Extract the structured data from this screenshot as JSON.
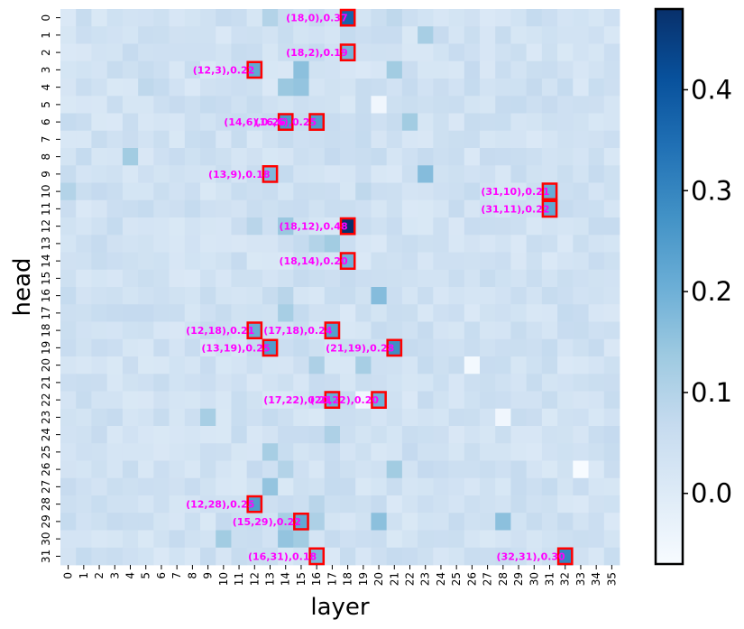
{
  "chart_data": {
    "type": "heatmap",
    "title": "",
    "xlabel": "layer",
    "ylabel": "head",
    "n_layers": 36,
    "n_heads": 32,
    "x_ticks": [
      "0",
      "1",
      "2",
      "3",
      "4",
      "5",
      "6",
      "7",
      "8",
      "9",
      "10",
      "11",
      "12",
      "13",
      "14",
      "15",
      "16",
      "17",
      "18",
      "19",
      "20",
      "21",
      "22",
      "23",
      "24",
      "25",
      "26",
      "27",
      "28",
      "29",
      "30",
      "31",
      "32",
      "33",
      "34",
      "35"
    ],
    "y_ticks": [
      "0",
      "1",
      "2",
      "3",
      "4",
      "5",
      "6",
      "7",
      "8",
      "9",
      "10",
      "11",
      "12",
      "13",
      "14",
      "15",
      "16",
      "17",
      "18",
      "19",
      "20",
      "21",
      "22",
      "23",
      "24",
      "25",
      "26",
      "27",
      "28",
      "29",
      "30",
      "31"
    ],
    "value_range": [
      -0.07,
      0.48
    ],
    "colormap": [
      "#f7fbff",
      "#deebf7",
      "#c6dbef",
      "#9ecae1",
      "#6baed6",
      "#4292c6",
      "#2171b5",
      "#08519c",
      "#08306b"
    ],
    "colorbar": {
      "ticks": [
        0.0,
        0.1,
        0.2,
        0.3,
        0.4
      ],
      "tick_labels": [
        "0.0",
        "0.1",
        "0.2",
        "0.3",
        "0.4"
      ]
    },
    "highlight_color": "#ff0000",
    "annotation_color": "#ff00ff",
    "highlighted_cells": [
      {
        "layer": 18,
        "head": 0,
        "value": 0.37,
        "label": "(18,0),0.37"
      },
      {
        "layer": 18,
        "head": 2,
        "value": 0.19,
        "label": "(18,2),0.19"
      },
      {
        "layer": 12,
        "head": 3,
        "value": 0.22,
        "label": "(12,3),0.22"
      },
      {
        "layer": 14,
        "head": 6,
        "value": 0.26,
        "label": "(14,6),0.26"
      },
      {
        "layer": 16,
        "head": 6,
        "value": 0.25,
        "label": "(16,6),0.25"
      },
      {
        "layer": 13,
        "head": 9,
        "value": 0.18,
        "label": "(13,9),0.18"
      },
      {
        "layer": 31,
        "head": 10,
        "value": 0.21,
        "label": "(31,10),0.21"
      },
      {
        "layer": 31,
        "head": 11,
        "value": 0.22,
        "label": "(31,11),0.22"
      },
      {
        "layer": 18,
        "head": 12,
        "value": 0.48,
        "label": "(18,12),0.48"
      },
      {
        "layer": 18,
        "head": 14,
        "value": 0.2,
        "label": "(18,14),0.20"
      },
      {
        "layer": 12,
        "head": 18,
        "value": 0.21,
        "label": "(12,18),0.21"
      },
      {
        "layer": 17,
        "head": 18,
        "value": 0.24,
        "label": "(17,18),0.24"
      },
      {
        "layer": 13,
        "head": 19,
        "value": 0.25,
        "label": "(13,19),0.25"
      },
      {
        "layer": 21,
        "head": 19,
        "value": 0.28,
        "label": "(21,19),0.28"
      },
      {
        "layer": 17,
        "head": 22,
        "value": 0.21,
        "label": "(17,22),0.21"
      },
      {
        "layer": 20,
        "head": 22,
        "value": 0.2,
        "label": "(20,22),0.20"
      },
      {
        "layer": 12,
        "head": 28,
        "value": 0.25,
        "label": "(12,28),0.25"
      },
      {
        "layer": 15,
        "head": 29,
        "value": 0.22,
        "label": "(15,29),0.22"
      },
      {
        "layer": 16,
        "head": 31,
        "value": 0.18,
        "label": "(16,31),0.18"
      },
      {
        "layer": 32,
        "head": 31,
        "value": 0.3,
        "label": "(32,31),0.30"
      }
    ],
    "background_cells": [
      {
        "layer": 13,
        "head": 0,
        "value": 0.1
      },
      {
        "layer": 21,
        "head": 0,
        "value": 0.08
      },
      {
        "layer": 23,
        "head": 1,
        "value": 0.12
      },
      {
        "layer": 15,
        "head": 3,
        "value": 0.16
      },
      {
        "layer": 21,
        "head": 3,
        "value": 0.13
      },
      {
        "layer": 14,
        "head": 4,
        "value": 0.14
      },
      {
        "layer": 15,
        "head": 4,
        "value": 0.15
      },
      {
        "layer": 5,
        "head": 4,
        "value": 0.08
      },
      {
        "layer": 30,
        "head": 4,
        "value": 0.07
      },
      {
        "layer": 22,
        "head": 6,
        "value": 0.13
      },
      {
        "layer": 4,
        "head": 8,
        "value": 0.13
      },
      {
        "layer": 23,
        "head": 9,
        "value": 0.17
      },
      {
        "layer": 0,
        "head": 10,
        "value": 0.1
      },
      {
        "layer": 19,
        "head": 10,
        "value": 0.08
      },
      {
        "layer": 14,
        "head": 12,
        "value": 0.14
      },
      {
        "layer": 17,
        "head": 13,
        "value": 0.13
      },
      {
        "layer": 16,
        "head": 13,
        "value": 0.1
      },
      {
        "layer": 20,
        "head": 16,
        "value": 0.17
      },
      {
        "layer": 14,
        "head": 16,
        "value": 0.09
      },
      {
        "layer": 14,
        "head": 17,
        "value": 0.12
      },
      {
        "layer": 16,
        "head": 20,
        "value": 0.11
      },
      {
        "layer": 19,
        "head": 20,
        "value": 0.12
      },
      {
        "layer": 9,
        "head": 23,
        "value": 0.12
      },
      {
        "layer": 17,
        "head": 24,
        "value": 0.11
      },
      {
        "layer": 13,
        "head": 25,
        "value": 0.12
      },
      {
        "layer": 14,
        "head": 26,
        "value": 0.1
      },
      {
        "layer": 21,
        "head": 26,
        "value": 0.13
      },
      {
        "layer": 13,
        "head": 27,
        "value": 0.15
      },
      {
        "layer": 16,
        "head": 28,
        "value": 0.09
      },
      {
        "layer": 14,
        "head": 29,
        "value": 0.12
      },
      {
        "layer": 16,
        "head": 29,
        "value": 0.11
      },
      {
        "layer": 20,
        "head": 29,
        "value": 0.16
      },
      {
        "layer": 28,
        "head": 29,
        "value": 0.16
      },
      {
        "layer": 10,
        "head": 30,
        "value": 0.13
      },
      {
        "layer": 14,
        "head": 30,
        "value": 0.15
      },
      {
        "layer": 15,
        "head": 30,
        "value": 0.13
      },
      {
        "layer": 9,
        "head": 8,
        "value": 0.06
      },
      {
        "layer": 12,
        "head": 12,
        "value": 0.09
      },
      {
        "layer": 33,
        "head": 26,
        "value": -0.07
      },
      {
        "layer": 19,
        "head": 22,
        "value": -0.05
      },
      {
        "layer": 26,
        "head": 20,
        "value": -0.06
      },
      {
        "layer": 28,
        "head": 23,
        "value": -0.05
      },
      {
        "layer": 20,
        "head": 5,
        "value": -0.05
      }
    ],
    "default_value": 0.04
  }
}
